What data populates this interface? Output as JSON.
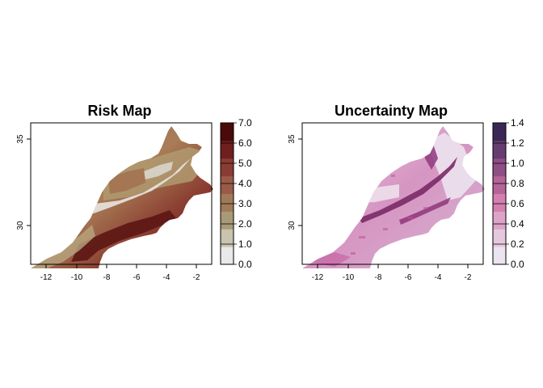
{
  "figure": {
    "panels": [
      {
        "id": "risk",
        "title": "Risk Map",
        "legend_ticks": [
          "0.0",
          "1.0",
          "2.0",
          "3.0",
          "4.0",
          "5.0",
          "6.0",
          "7.0"
        ],
        "legend_colors": [
          "#e9e9e9",
          "#c8c4ae",
          "#a89a78",
          "#a07a58",
          "#9a5a48",
          "#8a3c34",
          "#6f1f1f",
          "#4a0a0a"
        ]
      },
      {
        "id": "uncertainty",
        "title": "Uncertainty Map",
        "legend_ticks": [
          "0.0",
          "0.2",
          "0.4",
          "0.6",
          "0.8",
          "1.0",
          "1.2",
          "1.4"
        ],
        "legend_colors": [
          "#ece4f0",
          "#e6c8de",
          "#dea3c8",
          "#d47fb0",
          "#b46499",
          "#8e4f85",
          "#663d71",
          "#3b2756"
        ]
      }
    ],
    "x_ticks": [
      "-12",
      "-10",
      "-8",
      "-6",
      "-4",
      "-2"
    ],
    "y_ticks": [
      "30",
      "35"
    ]
  },
  "chart_data": [
    {
      "type": "heatmap",
      "title": "Risk Map",
      "x_ticks": [
        -12,
        -10,
        -8,
        -6,
        -4,
        -2
      ],
      "y_ticks": [
        30,
        35
      ],
      "legend_range": [
        0.0,
        7.0
      ],
      "legend_ticks": [
        0.0,
        1.0,
        2.0,
        3.0,
        4.0,
        5.0,
        6.0,
        7.0
      ]
    },
    {
      "type": "heatmap",
      "title": "Uncertainty Map",
      "x_ticks": [
        -12,
        -10,
        -8,
        -6,
        -4,
        -2
      ],
      "y_ticks": [
        30,
        35
      ],
      "legend_range": [
        0.0,
        1.4
      ],
      "legend_ticks": [
        0.0,
        0.2,
        0.4,
        0.6,
        0.8,
        1.0,
        1.2,
        1.4
      ]
    }
  ]
}
